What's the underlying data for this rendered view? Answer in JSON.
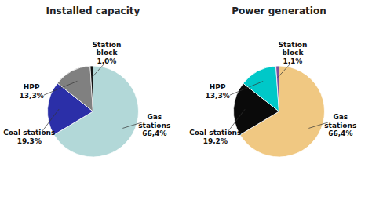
{
  "chart_data": [
    {
      "type": "pie",
      "title": "Installed capacity",
      "categories": [
        "Gas\nstations",
        "Coal stations",
        "HPP",
        "Station\nblock"
      ],
      "values": [
        66.4,
        19.3,
        13.3,
        1.0
      ],
      "value_labels": [
        "66,4%",
        "19,3%",
        "13,3%",
        "1,0%"
      ],
      "colors": [
        "#b2d8d8",
        "#2b2fa8",
        "#808080",
        "#111111"
      ],
      "data_labels": true
    },
    {
      "type": "pie",
      "title": "Power generation",
      "categories": [
        "Gas\nstations",
        "Coal stations",
        "HPP",
        "Station\nblock"
      ],
      "values": [
        66.4,
        19.2,
        13.3,
        1.1
      ],
      "value_labels": [
        "66,4%",
        "19,2%",
        "13,3%",
        "1,1%"
      ],
      "colors": [
        "#f0c882",
        "#0a0a0a",
        "#00c8c8",
        "#7b4fa0"
      ],
      "data_labels": true
    }
  ]
}
